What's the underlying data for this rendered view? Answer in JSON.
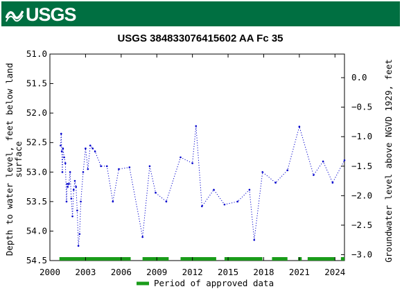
{
  "header": {
    "agency_logo_text": "USGS",
    "brand_color": "#006f41"
  },
  "chart_data": {
    "type": "line",
    "title": "USGS 384833076415602 AA Fc  35",
    "ylabel_left": [
      "Depth to water level, feet below land",
      "surface"
    ],
    "ylabel_right": "Groundwater level above NGVD 1929, feet",
    "xlim": [
      2000,
      2024.8
    ],
    "ylim_left": [
      54.5,
      51.0
    ],
    "ylim_right": [
      -3.1,
      0.4
    ],
    "x_ticks": [
      2000,
      2003,
      2006,
      2009,
      2012,
      2015,
      2018,
      2021,
      2024
    ],
    "x_tick_labels": [
      "2000",
      "2003",
      "2006",
      "2009",
      "2012",
      "2015",
      "2018",
      "2021",
      "2024"
    ],
    "y_ticks_left": [
      51.0,
      51.5,
      52.0,
      52.5,
      53.0,
      53.5,
      54.0,
      54.5
    ],
    "y_tick_labels_left": [
      "51.0",
      "51.5",
      "52.0",
      "52.5",
      "53.0",
      "53.5",
      "54.0",
      "54.5"
    ],
    "y_ticks_right": [
      0.0,
      -0.5,
      -1.0,
      -1.5,
      -2.0,
      -2.5,
      -3.0
    ],
    "y_tick_labels_right": [
      "0.0",
      "−0.5",
      "−1.0",
      "−1.5",
      "−2.0",
      "−2.5",
      "−3.0"
    ],
    "series": [
      {
        "color": "#0000cc",
        "style": "dotted-with-points",
        "x": [
          2000.9,
          2000.95,
          2001.0,
          2001.05,
          2001.1,
          2001.2,
          2001.3,
          2001.4,
          2001.45,
          2001.5,
          2001.6,
          2001.7,
          2001.8,
          2001.9,
          2002.0,
          2002.1,
          2002.2,
          2002.3,
          2002.4,
          2002.5,
          2002.6,
          2002.8,
          2003.0,
          2003.2,
          2003.4,
          2003.6,
          2003.8,
          2004.3,
          2004.8,
          2005.3,
          2005.8,
          2006.7,
          2007.8,
          2008.4,
          2008.9,
          2009.8,
          2011.0,
          2012.0,
          2012.3,
          2012.8,
          2013.8,
          2014.7,
          2015.8,
          2016.8,
          2017.2,
          2017.9,
          2019.0,
          2020.0,
          2021.0,
          2022.2,
          2023.0,
          2023.8,
          2024.8
        ],
        "y": [
          52.55,
          52.35,
          52.65,
          53.0,
          52.6,
          52.75,
          52.85,
          53.5,
          53.2,
          53.25,
          53.2,
          53.0,
          53.45,
          53.75,
          53.3,
          53.15,
          53.25,
          53.65,
          54.25,
          54.05,
          53.5,
          53.0,
          52.6,
          52.95,
          52.55,
          52.6,
          52.65,
          52.9,
          52.9,
          53.5,
          52.95,
          52.92,
          54.1,
          52.9,
          53.35,
          53.5,
          52.75,
          52.85,
          52.22,
          53.58,
          53.3,
          53.55,
          53.5,
          53.3,
          54.15,
          53.0,
          53.18,
          52.97,
          52.23,
          53.05,
          52.82,
          53.18,
          52.8
        ]
      }
    ],
    "approved_periods": [
      [
        2000.8,
        2006.8
      ],
      [
        2007.8,
        2010.0
      ],
      [
        2011.0,
        2014.0
      ],
      [
        2014.7,
        2017.9
      ],
      [
        2018.7,
        2020.0
      ],
      [
        2020.9,
        2021.2
      ],
      [
        2021.7,
        2024.0
      ],
      [
        2024.5,
        2024.8
      ]
    ],
    "approved_color": "#1a9c1a",
    "legend": {
      "placement": "bottom-center",
      "label": "Period of approved data"
    }
  }
}
